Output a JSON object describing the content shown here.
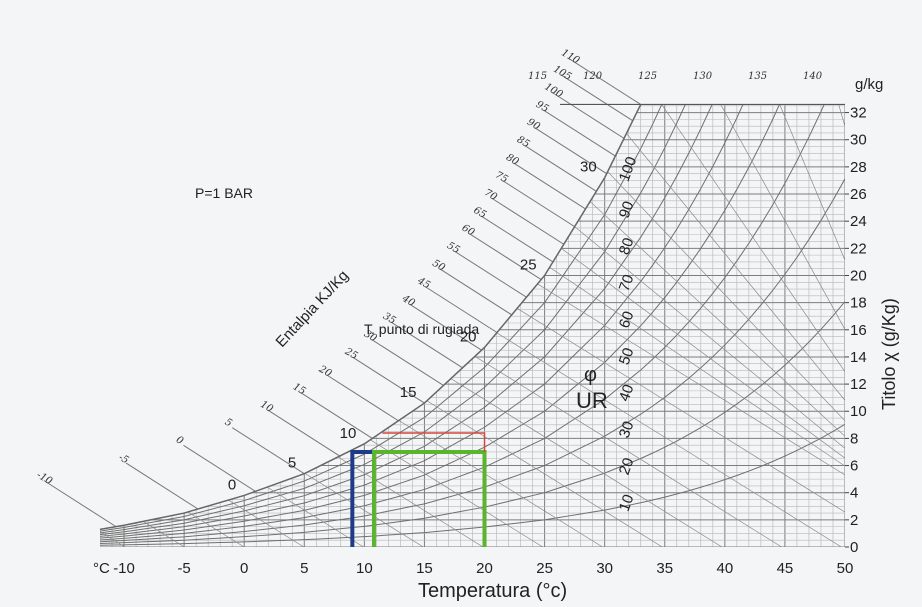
{
  "chart_data": {
    "type": "line",
    "note_pressure": "P=1 BAR",
    "xlabel": "Temperatura (°c)",
    "ylabel": "Titolo χ  (g/Kg)",
    "x_unit_label": "°C",
    "y_unit_label": "g/kg",
    "enthalpy_label": "Entalpia KJ/Kg",
    "dewpoint_label": "T. punto di rugiada",
    "rh_symbol": "φ",
    "rh_label": "UR",
    "xlim": [
      -12,
      50
    ],
    "ylim": [
      0,
      33
    ],
    "x_ticks": [
      "-10",
      "-5",
      "0",
      "5",
      "10",
      "15",
      "20",
      "25",
      "30",
      "35",
      "40",
      "45",
      "50"
    ],
    "y_ticks": [
      "0",
      "2",
      "4",
      "6",
      "8",
      "10",
      "12",
      "14",
      "16",
      "18",
      "20",
      "22",
      "24",
      "26",
      "28",
      "30",
      "32"
    ],
    "saturation_temperature_labels": [
      "0",
      "5",
      "10",
      "15",
      "20",
      "25",
      "30"
    ],
    "relative_humidity_labels": [
      "10",
      "20",
      "30",
      "40",
      "50",
      "60",
      "70",
      "80",
      "90",
      "100"
    ],
    "enthalpy_labels": [
      "-10",
      "-5",
      "0",
      "5",
      "10",
      "15",
      "20",
      "25",
      "30",
      "35",
      "40",
      "45",
      "50",
      "55",
      "60",
      "65",
      "70",
      "75",
      "80",
      "85",
      "90",
      "95",
      "100",
      "105",
      "110",
      "115",
      "120",
      "125",
      "130",
      "135",
      "140"
    ],
    "saturation_curve": [
      {
        "t": -12,
        "x": 1.3
      },
      {
        "t": -10,
        "x": 1.6
      },
      {
        "t": -5,
        "x": 2.5
      },
      {
        "t": 0,
        "x": 3.8
      },
      {
        "t": 5,
        "x": 5.4
      },
      {
        "t": 10,
        "x": 7.6
      },
      {
        "t": 15,
        "x": 10.6
      },
      {
        "t": 20,
        "x": 14.7
      },
      {
        "t": 25,
        "x": 20.0
      },
      {
        "t": 30,
        "x": 27.2
      },
      {
        "t": 33,
        "x": 32.6
      }
    ],
    "highlights": [
      {
        "color": "#1f3a8a",
        "t_low": 9,
        "t_high": 20,
        "x": 7.0
      },
      {
        "color": "#5ab52e",
        "t_low": 10.8,
        "t_high": 20,
        "x": 7.0
      },
      {
        "color": "#d9443c",
        "t_low": 11.5,
        "t_high": 20,
        "x": 8.4
      }
    ]
  }
}
